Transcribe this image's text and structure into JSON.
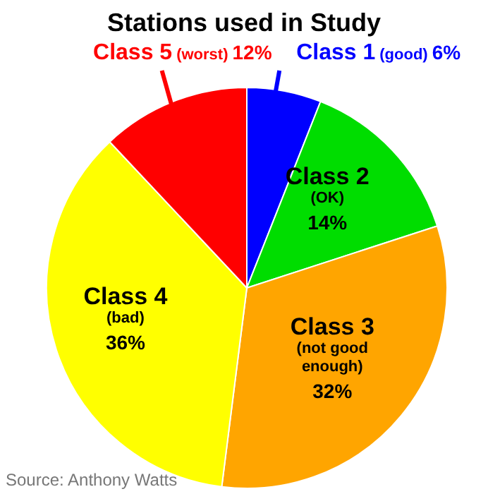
{
  "chart_data": {
    "type": "pie",
    "title": "Stations used in Study",
    "categories": [
      "Class 1 (good)",
      "Class 2 (OK)",
      "Class 3 (not good enough)",
      "Class 4 (bad)",
      "Class 5 (worst)"
    ],
    "values": [
      6,
      14,
      32,
      36,
      12
    ],
    "value_labels": [
      "6%",
      "14%",
      "32%",
      "36%",
      "12%"
    ],
    "colors": [
      "#0000ff",
      "#00dd00",
      "#ffa500",
      "#ffff00",
      "#ff0000"
    ],
    "legend": false,
    "annotations": [
      "Source: Anthony Watts"
    ]
  }
}
